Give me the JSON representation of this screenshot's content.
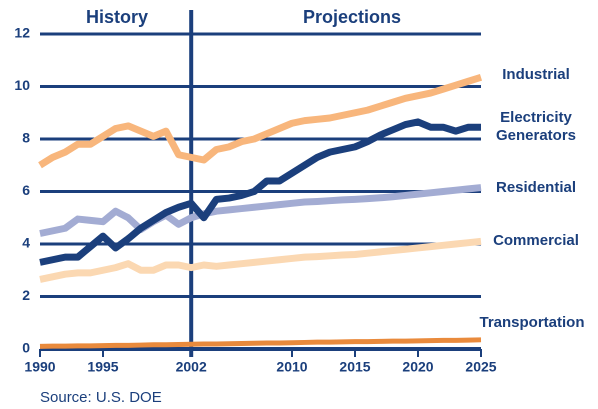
{
  "chart_data": {
    "type": "line",
    "annotations": {
      "history": "History",
      "projections": "Projections",
      "source": "Source: U.S. DOE"
    },
    "x": [
      1990,
      1991,
      1992,
      1993,
      1994,
      1995,
      1996,
      1997,
      1998,
      1999,
      2000,
      2001,
      2002,
      2003,
      2004,
      2005,
      2006,
      2007,
      2008,
      2009,
      2010,
      2011,
      2012,
      2013,
      2014,
      2015,
      2016,
      2017,
      2018,
      2019,
      2020,
      2021,
      2022,
      2023,
      2024,
      2025
    ],
    "xlim": [
      1990,
      2025
    ],
    "xticks": [
      1990,
      1995,
      2002,
      2010,
      2015,
      2020,
      2025
    ],
    "ylim": [
      0,
      12
    ],
    "yticks": [
      0,
      2,
      4,
      6,
      8,
      10,
      12
    ],
    "grid": true,
    "series": [
      {
        "name": "Residential",
        "color": "#a3acd3",
        "values": [
          4.4,
          4.5,
          4.6,
          4.95,
          4.9,
          4.85,
          5.25,
          5.0,
          4.55,
          4.85,
          5.1,
          4.75,
          5.0,
          5.15,
          5.25,
          5.3,
          5.35,
          5.4,
          5.45,
          5.5,
          5.55,
          5.6,
          5.62,
          5.65,
          5.68,
          5.7,
          5.73,
          5.76,
          5.8,
          5.85,
          5.9,
          5.95,
          6.0,
          6.05,
          6.1,
          6.15
        ]
      },
      {
        "name": "Commercial",
        "color": "#fbd8b2",
        "values": [
          2.65,
          2.75,
          2.85,
          2.9,
          2.9,
          3.0,
          3.1,
          3.25,
          3.0,
          3.0,
          3.2,
          3.2,
          3.1,
          3.2,
          3.15,
          3.2,
          3.25,
          3.3,
          3.35,
          3.4,
          3.45,
          3.5,
          3.52,
          3.55,
          3.58,
          3.6,
          3.65,
          3.7,
          3.75,
          3.8,
          3.85,
          3.9,
          3.95,
          4.0,
          4.05,
          4.1
        ]
      },
      {
        "name": "Industrial",
        "color": "#f8b67c",
        "values": [
          7.0,
          7.3,
          7.5,
          7.8,
          7.8,
          8.1,
          8.4,
          8.5,
          8.3,
          8.1,
          8.3,
          7.4,
          7.3,
          7.2,
          7.6,
          7.7,
          7.9,
          8.0,
          8.2,
          8.4,
          8.6,
          8.7,
          8.75,
          8.8,
          8.9,
          9.0,
          9.1,
          9.25,
          9.4,
          9.55,
          9.65,
          9.75,
          9.9,
          10.05,
          10.2,
          10.35
        ]
      },
      {
        "name": "Electricity Generators",
        "color": "#1b3f7c",
        "values": [
          3.3,
          3.4,
          3.5,
          3.5,
          3.9,
          4.3,
          3.85,
          4.2,
          4.6,
          4.9,
          5.2,
          5.4,
          5.55,
          5.0,
          5.7,
          5.75,
          5.85,
          6.0,
          6.4,
          6.4,
          6.7,
          7.0,
          7.3,
          7.5,
          7.6,
          7.7,
          7.9,
          8.15,
          8.35,
          8.55,
          8.65,
          8.45,
          8.45,
          8.3,
          8.45,
          8.45
        ]
      },
      {
        "name": "Transportation",
        "color": "#e98a3c",
        "values": [
          0.1,
          0.11,
          0.11,
          0.12,
          0.12,
          0.13,
          0.14,
          0.14,
          0.15,
          0.16,
          0.16,
          0.17,
          0.18,
          0.19,
          0.19,
          0.2,
          0.21,
          0.22,
          0.23,
          0.23,
          0.24,
          0.25,
          0.26,
          0.26,
          0.27,
          0.28,
          0.28,
          0.29,
          0.3,
          0.3,
          0.31,
          0.32,
          0.33,
          0.33,
          0.34,
          0.35
        ]
      }
    ]
  }
}
